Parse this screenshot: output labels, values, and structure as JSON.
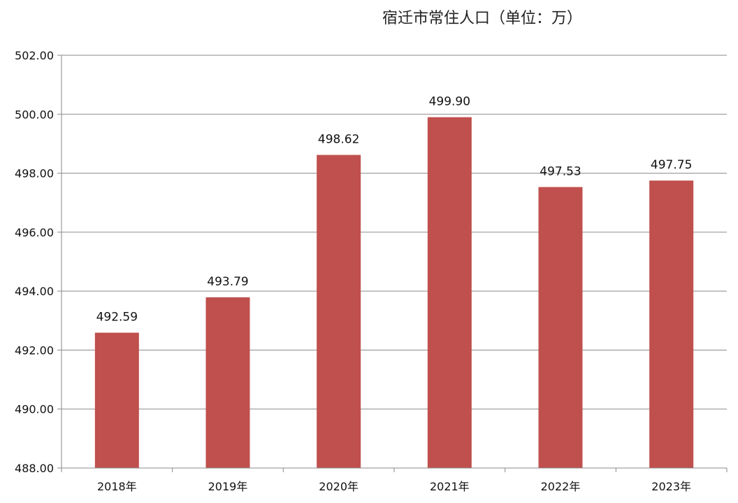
{
  "chart_data": {
    "type": "bar",
    "title": "宿迁市常住人口（单位：万）",
    "categories": [
      "2018年",
      "2019年",
      "2020年",
      "2021年",
      "2022年",
      "2023年"
    ],
    "values": [
      492.59,
      493.79,
      498.62,
      499.9,
      497.53,
      497.75
    ],
    "value_labels": [
      "492.59",
      "493.79",
      "498.62",
      "499.90",
      "497.53",
      "497.75"
    ],
    "ylim": [
      488,
      502
    ],
    "yticks": [
      488,
      490,
      492,
      494,
      496,
      498,
      500,
      502
    ],
    "ytick_labels": [
      "488.00",
      "490.00",
      "492.00",
      "494.00",
      "496.00",
      "498.00",
      "500.00",
      "502.00"
    ],
    "grid": true,
    "legend": "none",
    "bar_color": "#c0504d"
  }
}
